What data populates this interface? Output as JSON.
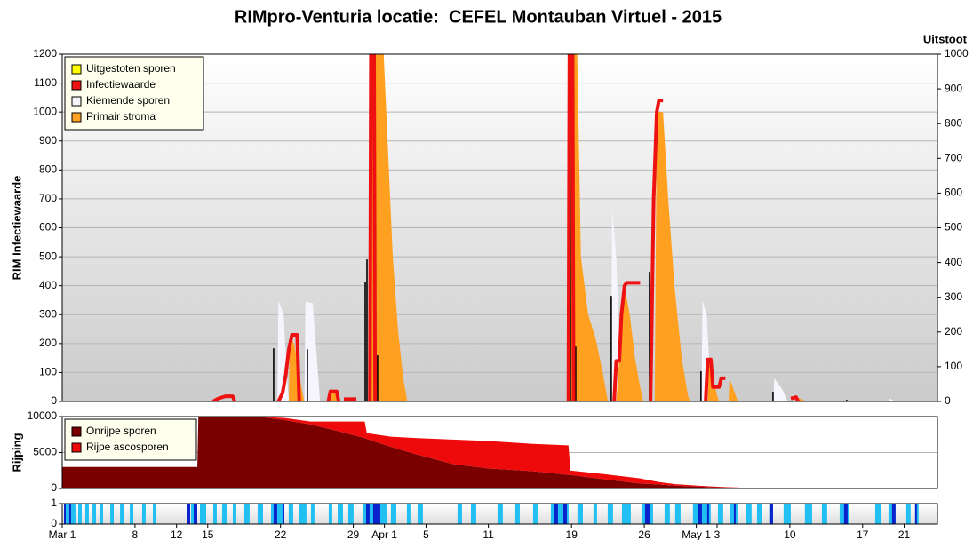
{
  "chart_data": [
    {
      "type": "line",
      "title": "RIMpro-Venturia locatie:  CEFEL Montauban Virtuel - 2015",
      "ylabel": "RIM Infectiewaarde",
      "y2label": "Uitstoot",
      "xlim": [
        0,
        84.2
      ],
      "ylim": [
        0,
        1200
      ],
      "yticks": [
        0,
        100,
        200,
        300,
        400,
        500,
        600,
        700,
        800,
        900,
        1000,
        1100,
        1200
      ],
      "y2lim": [
        0,
        1000
      ],
      "y2ticks": [
        0,
        100,
        200,
        300,
        400,
        500,
        600,
        700,
        800,
        900,
        1000
      ],
      "grid": true,
      "legend": "top-left",
      "series": [
        {
          "name": "Uitgestoten sporen",
          "color": "#ffff00",
          "type": "area",
          "x": [],
          "values": []
        },
        {
          "name": "Infectiewaarde",
          "color": "#ee1111",
          "type": "line",
          "x": [
            14.5,
            15,
            15.7,
            16.4,
            16.6,
            null,
            20.8,
            21.2,
            21.5,
            21.8,
            22.1,
            22.6,
            22.8,
            null,
            25.6,
            25.8,
            26.4,
            26.6,
            null,
            27.1,
            28.3,
            null,
            29.6,
            29.7,
            30,
            30.1,
            null,
            48.7,
            48.8,
            49.1,
            49.2,
            null,
            53.1,
            53.3,
            53.6,
            53.8,
            54.1,
            54.3,
            55.6,
            null,
            56.6,
            56.9,
            57.2,
            57.4,
            57.8,
            null,
            61.9,
            62.1,
            62.4,
            62.6,
            63.2,
            63.4,
            63.8,
            null,
            70.1,
            70.6,
            70.8
          ],
          "values": [
            0,
            10,
            18,
            18,
            0,
            null,
            0,
            30,
            90,
            180,
            230,
            230,
            0,
            null,
            0,
            35,
            35,
            0,
            null,
            8,
            8,
            null,
            0,
            1250,
            1250,
            0,
            null,
            0,
            1250,
            1250,
            0,
            null,
            0,
            140,
            140,
            300,
            400,
            410,
            410,
            null,
            0,
            700,
            1000,
            1040,
            1040,
            null,
            0,
            145,
            145,
            50,
            50,
            80,
            80,
            null,
            10,
            15,
            0
          ]
        },
        {
          "name": "Kiemende sporen",
          "color": "#f6f4fc",
          "type": "area",
          "x": [
            20.7,
            20.8,
            21.3,
            21.6,
            21.8,
            null,
            23.3,
            23.4,
            24.1,
            24.5,
            24.8,
            null,
            30.3,
            30.4,
            31,
            31.4,
            31.6,
            null,
            49.3,
            49.4,
            49.9,
            50.3,
            50.5,
            null,
            52.8,
            52.9,
            53.3,
            53.6,
            53.8,
            null,
            61.5,
            61.6,
            62,
            62.3,
            62.5,
            null,
            68.4,
            68.5,
            69.3,
            69.8,
            null,
            79.5,
            79.6,
            80.2
          ],
          "values": [
            0,
            350,
            300,
            100,
            0,
            null,
            0,
            345,
            340,
            150,
            0,
            null,
            0,
            460,
            400,
            100,
            0,
            null,
            0,
            640,
            400,
            100,
            0,
            null,
            0,
            675,
            500,
            200,
            0,
            null,
            0,
            350,
            300,
            100,
            0,
            null,
            0,
            80,
            40,
            0,
            null,
            0,
            10,
            0
          ]
        },
        {
          "name": "Primair stroma",
          "color": "#ffa020",
          "type": "area",
          "x": [
            21.8,
            21.9,
            22.3,
            22.7,
            23.1,
            23.3,
            null,
            25.7,
            25.8,
            26.5,
            26.8,
            null,
            29.6,
            29.7,
            30.8,
            31.3,
            31.8,
            32.3,
            32.8,
            33.2,
            null,
            48.8,
            48.9,
            49.5,
            49.9,
            50.6,
            51.3,
            52,
            52.5,
            null,
            53.3,
            54.1,
            54.6,
            55.1,
            55.6,
            55.9,
            null,
            57,
            57.2,
            57.8,
            58.3,
            58.9,
            59.6,
            60.2,
            60.4,
            null,
            62.1,
            62.2,
            62.6,
            63,
            63.2,
            null,
            64.1,
            64.2,
            64.6,
            65,
            null,
            70.5,
            70.6,
            71.3,
            71.5
          ],
          "values": [
            0,
            230,
            200,
            120,
            30,
            0,
            null,
            0,
            40,
            30,
            0,
            null,
            0,
            1300,
            1300,
            900,
            500,
            250,
            80,
            0,
            null,
            0,
            1300,
            1300,
            500,
            300,
            220,
            100,
            0,
            null,
            0,
            400,
            300,
            150,
            50,
            0,
            null,
            0,
            1000,
            1000,
            700,
            400,
            150,
            20,
            0,
            null,
            0,
            145,
            80,
            20,
            0,
            null,
            0,
            80,
            40,
            0,
            null,
            0,
            15,
            5,
            0
          ]
        },
        {
          "color": "#000000",
          "type": "bar",
          "axis": "y2",
          "x": [
            20.34,
            23.59,
            29.15,
            29.32,
            30.34,
            48.72,
            48.89,
            49.4,
            52.82,
            56.5,
            61.45,
            68.38,
            75.47
          ],
          "values": [
            153,
            150,
            343,
            409,
            133,
            146,
            1000,
            158,
            304,
            373,
            87,
            28,
            5
          ]
        }
      ]
    },
    {
      "type": "area",
      "ylabel": "Rijping",
      "stacked": true,
      "grid": true,
      "legend": "top-left",
      "xlim": [
        0,
        84.2
      ],
      "ylim": [
        0,
        10000
      ],
      "yticks": [
        0,
        5000,
        10000
      ],
      "x": [
        0,
        13,
        13.1,
        18.8,
        21.4,
        23.9,
        26.5,
        29.1,
        29.3,
        31.6,
        34.2,
        37.6,
        41,
        45.3,
        48.7,
        48.9,
        52.1,
        55.6,
        57.4,
        59,
        62.4,
        65.8,
        68.4,
        70.9,
        84
      ],
      "series": [
        {
          "name": "Onrijpe sporen",
          "color": "#7a0000",
          "values": [
            3000,
            3000,
            10000,
            10000,
            9500,
            8900,
            8000,
            7000,
            6900,
            5800,
            4700,
            3400,
            2800,
            2400,
            1900,
            1880,
            1300,
            700,
            550,
            400,
            200,
            80,
            20,
            0,
            0
          ]
        },
        {
          "name": "Rijpe ascosporen",
          "color": "#ee0a0a",
          "values": [
            0,
            0,
            0,
            0,
            300,
            400,
            1300,
            2300,
            800,
            1400,
            2300,
            3400,
            3800,
            3800,
            4100,
            620,
            700,
            700,
            350,
            200,
            100,
            20,
            0,
            0,
            0
          ]
        }
      ]
    },
    {
      "type": "bar",
      "xlim": [
        0,
        84.2
      ],
      "ylim": [
        0,
        1
      ],
      "yticks": [
        0,
        1
      ],
      "grid": false,
      "xticks": [
        {
          "value": 0,
          "label": "Mar 1"
        },
        {
          "value": 7,
          "label": "8"
        },
        {
          "value": 11,
          "label": "12"
        },
        {
          "value": 14,
          "label": "15"
        },
        {
          "value": 21,
          "label": "22"
        },
        {
          "value": 28,
          "label": "29"
        },
        {
          "value": 31,
          "label": "Apr 1"
        },
        {
          "value": 35,
          "label": "5"
        },
        {
          "value": 41,
          "label": "11"
        },
        {
          "value": 49,
          "label": "19"
        },
        {
          "value": 56,
          "label": "26"
        },
        {
          "value": 61,
          "label": "May 1"
        },
        {
          "value": 63,
          "label": "3"
        },
        {
          "value": 70,
          "label": "10"
        },
        {
          "value": 77,
          "label": "17"
        },
        {
          "value": 81,
          "label": "21"
        }
      ],
      "series": [
        {
          "color": "#22c0f2",
          "type": "interval",
          "x": [
            0.17,
            0.85,
            1.54,
            2.22,
            2.91,
            3.59,
            4.62,
            5.56,
            6.5,
            7.69,
            8.72,
            12.39,
            13.25,
            14.53,
            15.38,
            16.41,
            17.52,
            18.8,
            20.09,
            21.79,
            22.74,
            23.93,
            25.64,
            26.5,
            27.52,
            28.89,
            31.62,
            33.16,
            34.19,
            38.03,
            39.32,
            41.88,
            43.59,
            45.3,
            47.01,
            49.57,
            51.11,
            52.48,
            53.85,
            55.73,
            57.95,
            58.97,
            60.68,
            63.08,
            64.27,
            65.81,
            66.84,
            68.03,
            69.4,
            71.45,
            73.08,
            74.79,
            78.21,
            79.49,
            81.2,
            82.05
          ],
          "x_end": [
            0.68,
            1.28,
            1.88,
            2.56,
            3.25,
            3.93,
            4.96,
            5.98,
            6.84,
            8.03,
            9.06,
            12.99,
            13.85,
            14.87,
            15.9,
            16.75,
            18.03,
            19.32,
            21.37,
            22.22,
            23.5,
            24.27,
            25.98,
            27.01,
            28.03,
            31.2,
            32.14,
            33.5,
            34.7,
            38.46,
            39.83,
            42.39,
            44.02,
            45.73,
            48.72,
            50.09,
            51.45,
            52.99,
            54.7,
            56.84,
            58.46,
            59.49,
            62.39,
            63.59,
            64.96,
            66.32,
            67.35,
            68.38,
            70.09,
            72.14,
            73.59,
            75.73,
            78.8,
            80.17,
            81.62,
            82.39
          ],
          "values": [
            1,
            1,
            1,
            1,
            1,
            1,
            1,
            1,
            1,
            1,
            1,
            1,
            1,
            1,
            1,
            1,
            1,
            1,
            1,
            1,
            1,
            1,
            1,
            1,
            1,
            1,
            1,
            1,
            1,
            1,
            1,
            1,
            1,
            1,
            1,
            1,
            1,
            1,
            1,
            1,
            1,
            1,
            1,
            1,
            1,
            1,
            1,
            1,
            1,
            1,
            1,
            1,
            1,
            1,
            1,
            1
          ]
        },
        {
          "color": "#0a22cc",
          "type": "interval",
          "x": [
            0.17,
            0.68,
            11.97,
            12.65,
            20.34,
            21.2,
            29.23,
            29.91,
            47.35,
            48.21,
            56.07,
            61.2,
            62.05,
            64.62,
            68.03,
            75.21,
            79.83,
            82.05
          ],
          "x_end": [
            0.34,
            0.85,
            12.31,
            12.99,
            20.68,
            21.37,
            29.57,
            30.6,
            47.69,
            48.55,
            56.58,
            61.54,
            62.22,
            64.79,
            68.38,
            75.56,
            80.17,
            82.22
          ],
          "values": [
            1,
            1,
            1,
            1,
            1,
            1,
            1,
            1,
            1,
            1,
            1,
            1,
            1,
            1,
            1,
            1,
            1,
            1
          ]
        }
      ]
    }
  ]
}
